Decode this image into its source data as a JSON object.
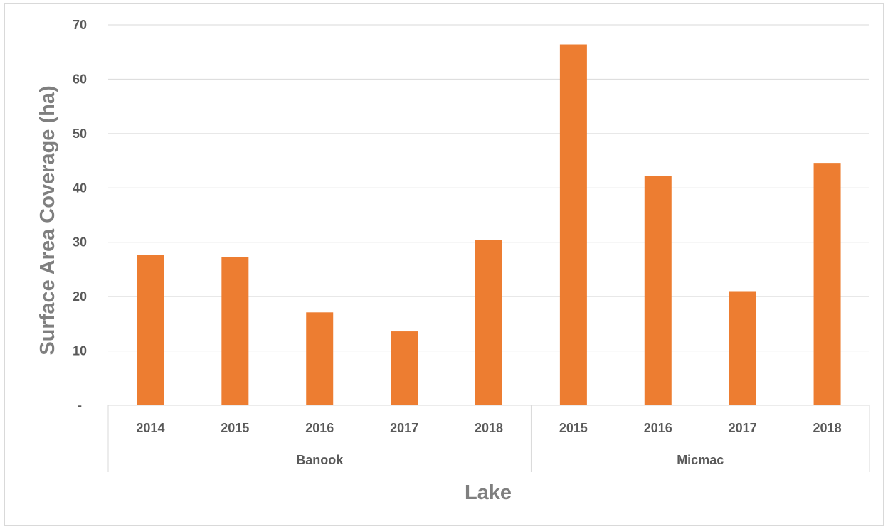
{
  "chart_data": {
    "type": "bar",
    "xlabel": "Lake",
    "ylabel": "Surface Area Coverage (ha)",
    "ylim": [
      0,
      70
    ],
    "yticks": [
      {
        "value": 0,
        "label": "-"
      },
      {
        "value": 10,
        "label": "10"
      },
      {
        "value": 20,
        "label": "20"
      },
      {
        "value": 30,
        "label": "30"
      },
      {
        "value": 40,
        "label": "40"
      },
      {
        "value": 50,
        "label": "50"
      },
      {
        "value": 60,
        "label": "60"
      },
      {
        "value": 70,
        "label": "70"
      }
    ],
    "grid": true,
    "legend": "none",
    "bar_color": "#ED7D31",
    "groups": [
      {
        "name": "Banook",
        "categories": [
          "2014",
          "2015",
          "2016",
          "2017",
          "2018"
        ],
        "values": [
          27.7,
          27.3,
          17.1,
          13.6,
          30.4
        ]
      },
      {
        "name": "Micmac",
        "categories": [
          "2015",
          "2016",
          "2017",
          "2018"
        ],
        "values": [
          66.4,
          42.2,
          21.0,
          44.6
        ]
      }
    ]
  }
}
